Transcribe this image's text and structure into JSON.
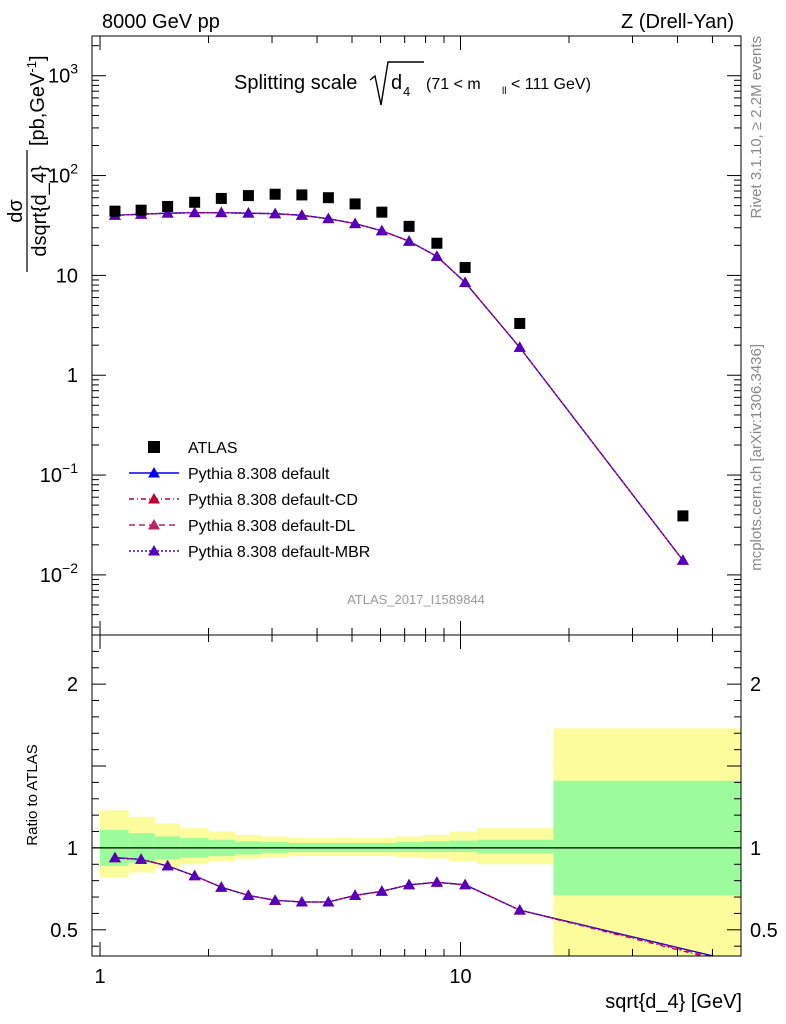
{
  "header": {
    "left": "8000 GeV pp",
    "right": "Z (Drell-Yan)"
  },
  "side_labels": {
    "rivet": "Rivet 3.1.10, ≥ 2.2M events",
    "mcplots": "mcplots.cern.ch [arXiv:1306.3436]"
  },
  "chart_data": [
    {
      "type": "scatter",
      "panel": "main",
      "title_main": "Splitting scale",
      "title_sqrt": "d",
      "title_sub": "4",
      "title_cut_pre": "(71 < m",
      "title_cut_sub": "ll",
      "title_cut_post": " < 111 GeV)",
      "ylabel_num": "dσ",
      "ylabel_den": "dsqrt{d_4}",
      "ylabel_unit_pre": "[pb,GeV",
      "ylabel_unit_sup": "-1",
      "ylabel_unit_post": "]",
      "watermark": "ATLAS_2017_I1589844",
      "x_scale": "log",
      "y_scale": "log",
      "xlim": [
        0.95,
        60
      ],
      "ylim": [
        0.0025,
        2500
      ],
      "yticks": [
        {
          "value": 1000,
          "base": "10",
          "exp": "3"
        },
        {
          "value": 100,
          "base": "10",
          "exp": "2"
        },
        {
          "value": 10,
          "base": "10",
          "exp": ""
        },
        {
          "value": 1,
          "base": "1",
          "exp": ""
        },
        {
          "value": 0.1,
          "base": "10",
          "exp": "−1"
        },
        {
          "value": 0.01,
          "base": "10",
          "exp": "−2"
        }
      ],
      "legend_position": "lower-left",
      "legend": [
        {
          "label": "ATLAS",
          "style": "atlas"
        },
        {
          "label": "Pythia 8.308 default",
          "style": "default"
        },
        {
          "label": "Pythia 8.308 default-CD",
          "style": "cd"
        },
        {
          "label": "Pythia 8.308 default-DL",
          "style": "dl"
        },
        {
          "label": "Pythia 8.308 default-MBR",
          "style": "mbr"
        }
      ],
      "colors": {
        "atlas": "#000000",
        "default": "#0000ee",
        "cd": "#bb0033",
        "dl": "#bb2266",
        "mbr": "#5500bb"
      },
      "atlas": {
        "x": [
          1.1,
          1.3,
          1.54,
          1.83,
          2.17,
          2.58,
          3.06,
          3.63,
          4.3,
          5.1,
          6.05,
          7.2,
          8.6,
          10.3,
          14.6,
          41.4
        ],
        "y": [
          44,
          45,
          49,
          54,
          59,
          63,
          65,
          64,
          60,
          52,
          43,
          31,
          21,
          12,
          3.3,
          0.039
        ]
      },
      "mc_line": {
        "x": [
          1.1,
          1.3,
          1.54,
          1.83,
          2.17,
          2.58,
          3.06,
          3.63,
          4.3,
          5.1,
          6.05,
          7.2,
          8.6,
          10.3,
          14.6,
          41.4
        ],
        "y": [
          40,
          41,
          42,
          42.5,
          42.5,
          42,
          41.5,
          40,
          37,
          33,
          28,
          22,
          15.5,
          8.5,
          1.9,
          0.014
        ]
      }
    },
    {
      "type": "line",
      "panel": "ratio",
      "ylabel": "Ratio to ATLAS",
      "xlabel": "sqrt{d_4} [GeV]",
      "x_scale": "log",
      "xlim": [
        0.95,
        60
      ],
      "ylim": [
        0.34,
        2.3
      ],
      "yticks": [
        {
          "value": 2,
          "label": "2"
        },
        {
          "value": 1,
          "label": "1"
        },
        {
          "value": 0.5,
          "label": "0.5"
        }
      ],
      "xticks": [
        {
          "value": 1,
          "label": "1"
        },
        {
          "value": 10,
          "label": "10"
        }
      ],
      "bands": {
        "edges": [
          1.0,
          1.2,
          1.42,
          1.67,
          2.0,
          2.37,
          2.82,
          3.34,
          3.95,
          4.7,
          5.58,
          6.6,
          7.85,
          9.3,
          11.1,
          18.1,
          60
        ],
        "inner_lo": [
          0.89,
          0.91,
          0.93,
          0.94,
          0.95,
          0.96,
          0.97,
          0.975,
          0.975,
          0.975,
          0.975,
          0.975,
          0.975,
          0.975,
          0.965,
          0.71
        ],
        "inner_hi": [
          1.11,
          1.09,
          1.07,
          1.06,
          1.05,
          1.04,
          1.035,
          1.03,
          1.03,
          1.03,
          1.03,
          1.035,
          1.04,
          1.045,
          1.05,
          1.41
        ],
        "outer_lo": [
          0.82,
          0.85,
          0.88,
          0.9,
          0.92,
          0.935,
          0.945,
          0.95,
          0.95,
          0.95,
          0.95,
          0.945,
          0.935,
          0.92,
          0.9,
          0.3
        ],
        "outer_hi": [
          1.23,
          1.19,
          1.15,
          1.12,
          1.1,
          1.08,
          1.07,
          1.06,
          1.06,
          1.06,
          1.06,
          1.07,
          1.08,
          1.1,
          1.12,
          1.73
        ]
      },
      "band_colors": {
        "inner": "#9cfc9c",
        "outer": "#fcfc9c"
      },
      "mc_ratio": {
        "x": [
          1.1,
          1.3,
          1.54,
          1.83,
          2.17,
          2.58,
          3.06,
          3.63,
          4.3,
          5.1,
          6.05,
          7.2,
          8.6,
          10.3,
          14.6,
          60
        ],
        "y": [
          0.94,
          0.93,
          0.89,
          0.83,
          0.76,
          0.71,
          0.68,
          0.67,
          0.67,
          0.71,
          0.735,
          0.775,
          0.79,
          0.775,
          0.62,
          0.3
        ]
      },
      "mc_ratio_markers_x": [
        1.1,
        1.3,
        1.54,
        1.83,
        2.17,
        2.58,
        3.06,
        3.63,
        4.3,
        5.1,
        6.05,
        7.2,
        8.6,
        10.3,
        14.6
      ]
    }
  ]
}
